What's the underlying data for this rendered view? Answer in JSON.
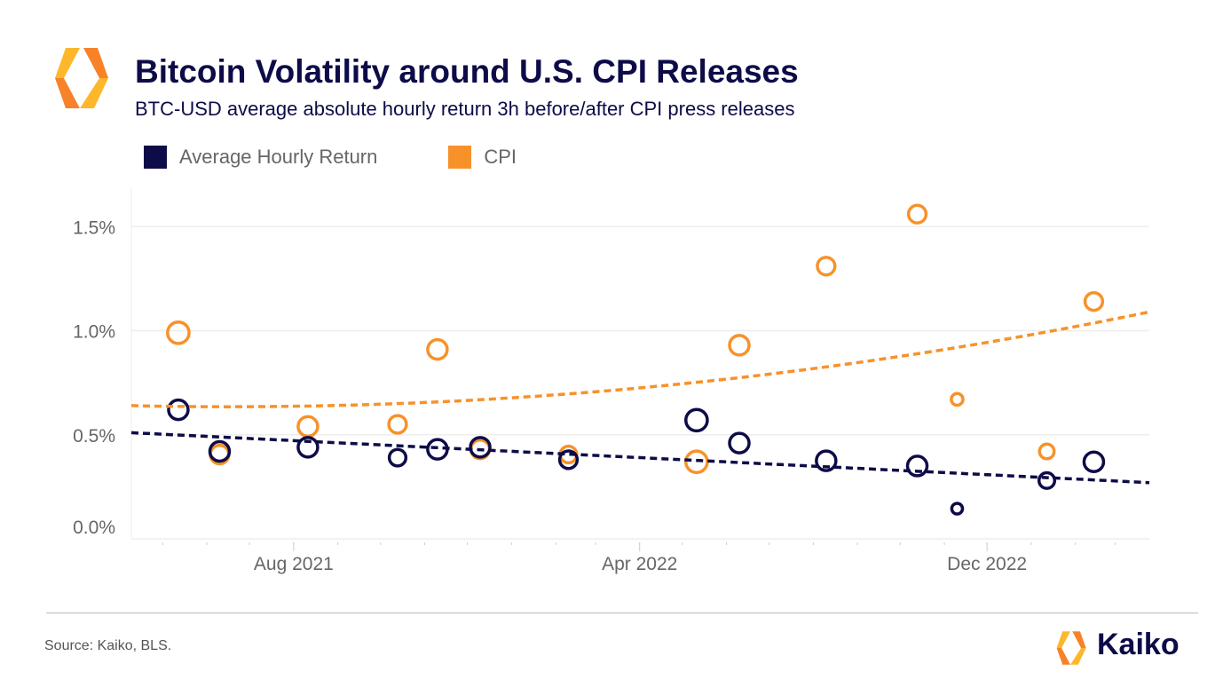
{
  "header": {
    "title": "Bitcoin Volatility around U.S. CPI Releases",
    "subtitle": "BTC-USD average absolute hourly return 3h before/after CPI press releases"
  },
  "footer": {
    "source": "Source: Kaiko, BLS.",
    "brand": "Kaiko"
  },
  "colors": {
    "navy": "#0d0c48",
    "orange": "#f7922a",
    "grid": "#eeeeee",
    "logo_light": "#fdb72a",
    "logo_dark": "#f7822a"
  },
  "chart_data": {
    "type": "scatter",
    "title": "Bitcoin Volatility around U.S. CPI Releases",
    "xlabel": "",
    "ylabel": "",
    "xlim": [
      "2021-04-09",
      "2023-03-25"
    ],
    "ylim": [
      0,
      1.6
    ],
    "yticks": [
      0,
      0.5,
      1.0,
      1.5
    ],
    "ytick_labels": [
      "0.0%",
      "0.5%",
      "1.0%",
      "1.5%"
    ],
    "xticks": [
      "2021-08-01",
      "2022-04-01",
      "2022-12-01"
    ],
    "xtick_labels": [
      "Aug 2021",
      "Apr 2022",
      "Dec 2022"
    ],
    "grid": true,
    "legend_placement": "top-left",
    "series": [
      {
        "name": "Average Hourly Return",
        "color": "#0d0c48",
        "trend": "linear",
        "trend_values": [
          [
            "2021-04-09",
            0.51
          ],
          [
            "2023-03-25",
            0.27
          ]
        ],
        "points": [
          [
            "2021-05-12",
            0.62,
            1
          ],
          [
            "2021-06-10",
            0.42,
            1
          ],
          [
            "2021-08-11",
            0.44,
            1
          ],
          [
            "2021-10-13",
            0.39,
            0.85
          ],
          [
            "2021-11-10",
            0.43,
            1
          ],
          [
            "2021-12-10",
            0.44,
            1
          ],
          [
            "2022-02-10",
            0.38,
            0.9
          ],
          [
            "2022-05-11",
            0.57,
            1.1
          ],
          [
            "2022-06-10",
            0.46,
            1
          ],
          [
            "2022-08-10",
            0.375,
            1
          ],
          [
            "2022-10-13",
            0.35,
            1
          ],
          [
            "2022-11-10",
            0.145,
            0.55
          ],
          [
            "2023-01-12",
            0.28,
            0.8
          ],
          [
            "2023-02-14",
            0.37,
            1
          ]
        ]
      },
      {
        "name": "CPI",
        "color": "#f7922a",
        "trend": "quadratic",
        "trend_values": [
          [
            "2021-04-09",
            0.64
          ],
          [
            "2022-04-01",
            0.725
          ],
          [
            "2023-03-25",
            1.09
          ]
        ],
        "points": [
          [
            "2021-05-12",
            0.99,
            1.1
          ],
          [
            "2021-06-10",
            0.405,
            0.95
          ],
          [
            "2021-08-11",
            0.54,
            1
          ],
          [
            "2021-10-13",
            0.55,
            0.9
          ],
          [
            "2021-11-10",
            0.91,
            1
          ],
          [
            "2021-12-10",
            0.43,
            0.95
          ],
          [
            "2022-02-10",
            0.405,
            0.85
          ],
          [
            "2022-05-11",
            0.37,
            1.1
          ],
          [
            "2022-06-10",
            0.93,
            1
          ],
          [
            "2022-08-10",
            1.31,
            0.9
          ],
          [
            "2022-10-13",
            1.56,
            0.9
          ],
          [
            "2022-11-10",
            0.67,
            0.6
          ],
          [
            "2023-01-12",
            0.42,
            0.75
          ],
          [
            "2023-02-14",
            1.14,
            0.9
          ]
        ]
      }
    ]
  }
}
